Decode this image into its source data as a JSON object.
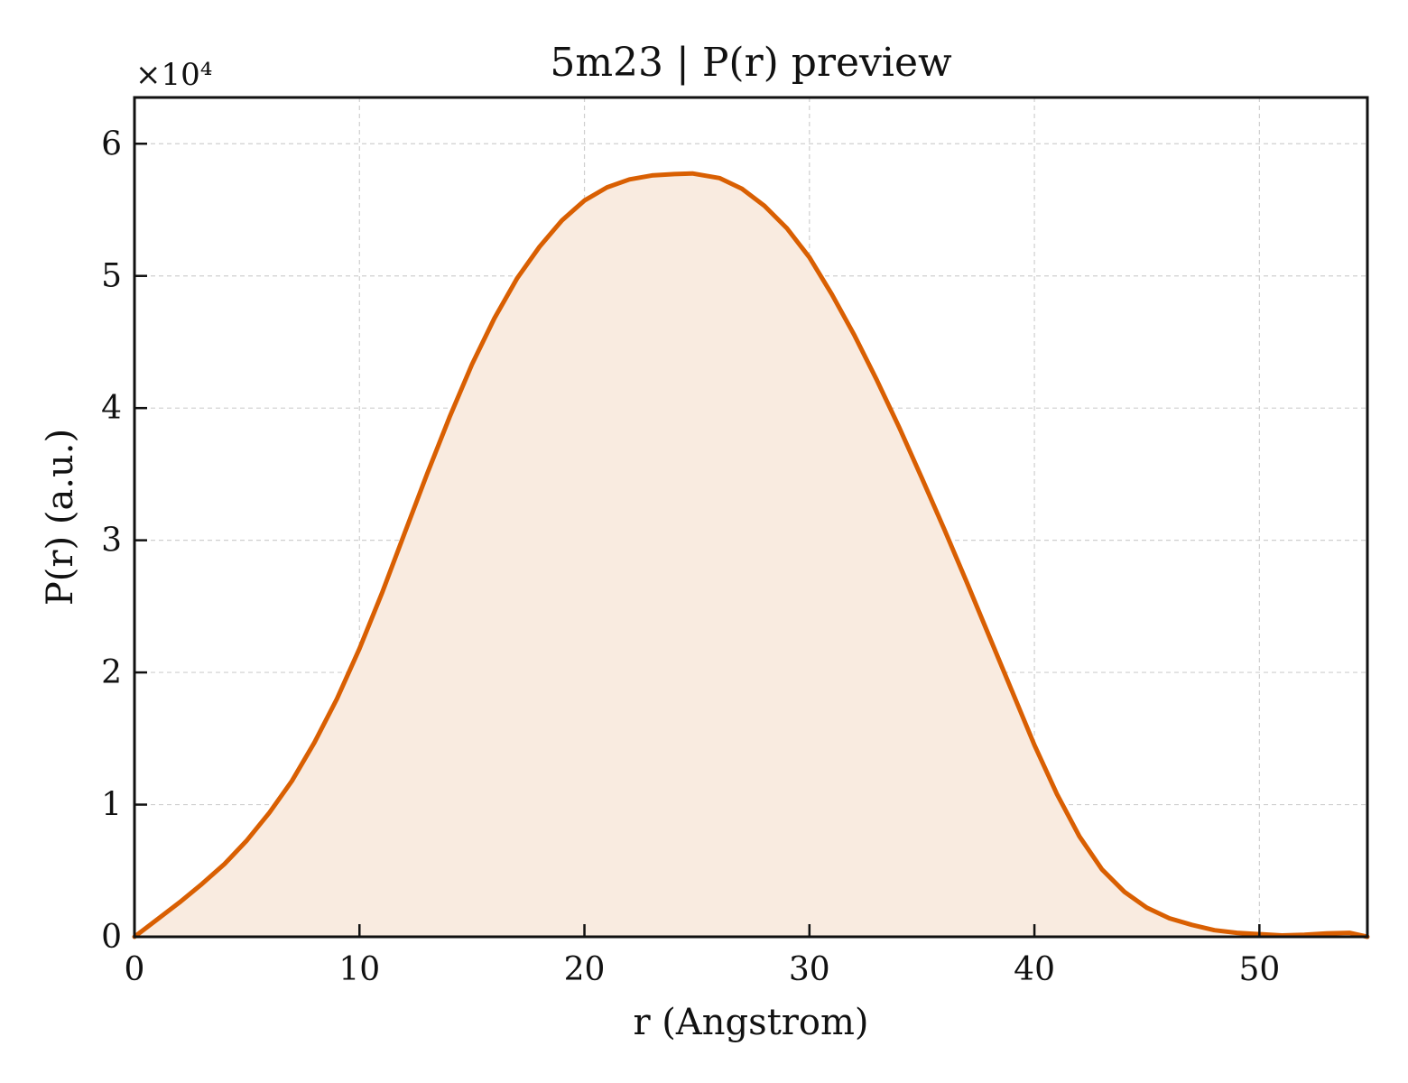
{
  "chart_data": {
    "type": "area",
    "title": "5m23 | P(r) preview",
    "xlabel": "r (Angstrom)",
    "ylabel": "P(r) (a.u.)",
    "y_scale_label": "×10⁴",
    "xlim": [
      0,
      54.8
    ],
    "ylim": [
      0,
      6.35
    ],
    "xticks": [
      0,
      10,
      20,
      30,
      40,
      50
    ],
    "yticks": [
      0,
      1,
      2,
      3,
      4,
      5,
      6
    ],
    "grid": true,
    "line_color": "#d95f02",
    "fill_color": "#f9ebe0",
    "series": [
      {
        "x": [
          0,
          1,
          2,
          3,
          4,
          5,
          6,
          7,
          8,
          9,
          10,
          11,
          12,
          13,
          14,
          15,
          16,
          17,
          18,
          19,
          20,
          21,
          22,
          23,
          24,
          24.8,
          26,
          27,
          28,
          29,
          30,
          31,
          32,
          33,
          34,
          35,
          36,
          37,
          38,
          39,
          40,
          41,
          42,
          43,
          44,
          45,
          46,
          47,
          48,
          49,
          50,
          51,
          52,
          53,
          54,
          54.8
        ],
        "y": [
          0.0,
          0.13,
          0.26,
          0.4,
          0.55,
          0.73,
          0.94,
          1.18,
          1.47,
          1.8,
          2.18,
          2.6,
          3.05,
          3.5,
          3.93,
          4.33,
          4.68,
          4.98,
          5.22,
          5.42,
          5.57,
          5.67,
          5.73,
          5.76,
          5.77,
          5.775,
          5.74,
          5.66,
          5.53,
          5.36,
          5.14,
          4.86,
          4.55,
          4.21,
          3.85,
          3.47,
          3.08,
          2.68,
          2.27,
          1.86,
          1.45,
          1.08,
          0.76,
          0.51,
          0.34,
          0.22,
          0.14,
          0.09,
          0.05,
          0.03,
          0.02,
          0.01,
          0.015,
          0.025,
          0.03,
          0.0
        ]
      }
    ]
  }
}
